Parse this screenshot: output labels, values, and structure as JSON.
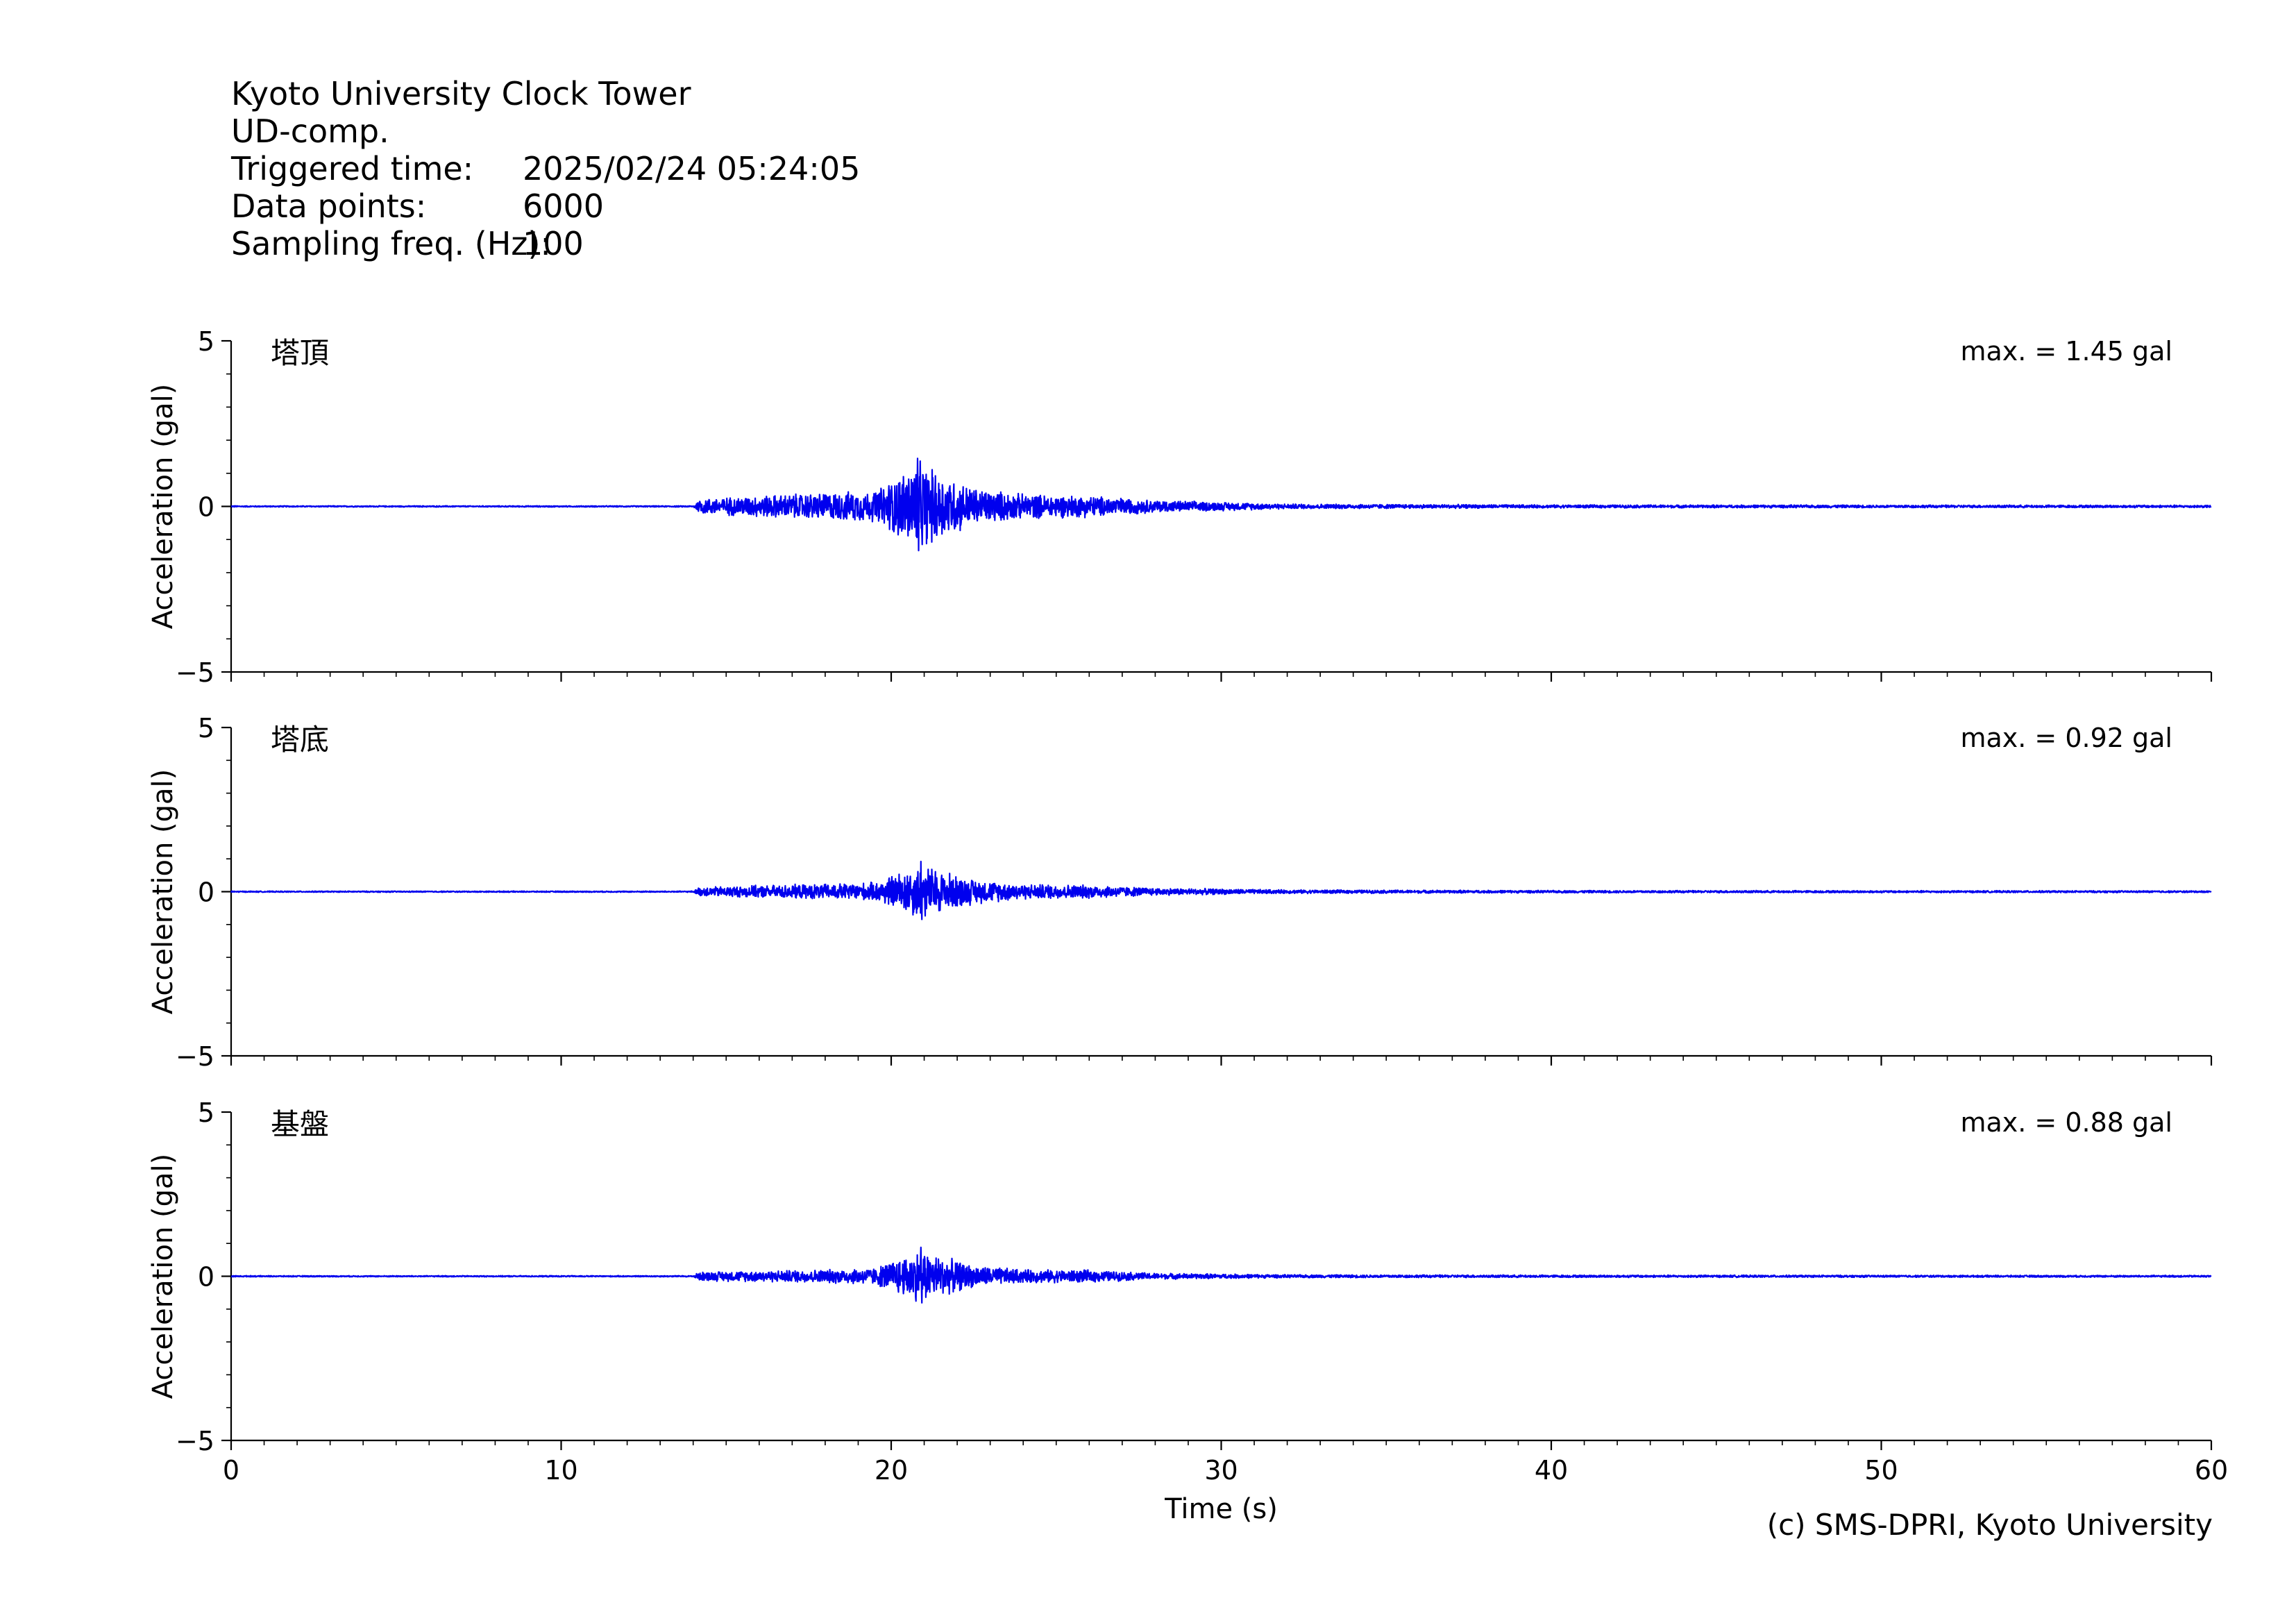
{
  "header": {
    "station": "Kyoto University Clock Tower",
    "component": "UD-comp.",
    "triggered_label": "Triggered time:",
    "triggered_value": "2025/02/24 05:24:05",
    "datapoints_label": "Data points:",
    "datapoints_value": "6000",
    "sampling_label": "Sampling freq. (Hz):",
    "sampling_value": "100"
  },
  "credit": "(c) SMS-DPRI, Kyoto University",
  "colors": {
    "trace": "#0000ee",
    "axis": "#000000"
  },
  "chart_data": [
    {
      "type": "line",
      "panel_label": "塔頂",
      "max_label": "max. = 1.45 gal",
      "peak": 1.45,
      "ylabel": "Acceleration (gal)",
      "xlabel": "",
      "xlim": [
        0,
        60
      ],
      "ylim": [
        -5,
        5
      ],
      "yticks": [
        -5,
        0,
        5
      ],
      "xticks": [
        0,
        10,
        20,
        30,
        40,
        50,
        60
      ],
      "show_xticklabels": false,
      "envelope": [
        {
          "t": 0,
          "a": 0.02
        },
        {
          "t": 14.0,
          "a": 0.02
        },
        {
          "t": 14.2,
          "a": 0.25
        },
        {
          "t": 16.0,
          "a": 0.35
        },
        {
          "t": 18.0,
          "a": 0.45
        },
        {
          "t": 19.5,
          "a": 0.5
        },
        {
          "t": 20.8,
          "a": 1.45
        },
        {
          "t": 21.5,
          "a": 1.1
        },
        {
          "t": 22.5,
          "a": 0.6
        },
        {
          "t": 24.0,
          "a": 0.4
        },
        {
          "t": 26.0,
          "a": 0.35
        },
        {
          "t": 28.0,
          "a": 0.2
        },
        {
          "t": 32.0,
          "a": 0.08
        },
        {
          "t": 40.0,
          "a": 0.05
        },
        {
          "t": 60.0,
          "a": 0.04
        }
      ]
    },
    {
      "type": "line",
      "panel_label": "塔底",
      "max_label": "max. = 0.92 gal",
      "peak": 0.92,
      "ylabel": "Acceleration (gal)",
      "xlabel": "",
      "xlim": [
        0,
        60
      ],
      "ylim": [
        -5,
        5
      ],
      "yticks": [
        -5,
        0,
        5
      ],
      "xticks": [
        0,
        10,
        20,
        30,
        40,
        50,
        60
      ],
      "show_xticklabels": false,
      "envelope": [
        {
          "t": 0,
          "a": 0.02
        },
        {
          "t": 14.0,
          "a": 0.02
        },
        {
          "t": 14.2,
          "a": 0.15
        },
        {
          "t": 16.0,
          "a": 0.2
        },
        {
          "t": 18.0,
          "a": 0.25
        },
        {
          "t": 19.5,
          "a": 0.3
        },
        {
          "t": 20.9,
          "a": 0.92
        },
        {
          "t": 21.5,
          "a": 0.7
        },
        {
          "t": 22.5,
          "a": 0.4
        },
        {
          "t": 24.0,
          "a": 0.25
        },
        {
          "t": 26.0,
          "a": 0.22
        },
        {
          "t": 28.0,
          "a": 0.12
        },
        {
          "t": 32.0,
          "a": 0.06
        },
        {
          "t": 40.0,
          "a": 0.04
        },
        {
          "t": 60.0,
          "a": 0.03
        }
      ]
    },
    {
      "type": "line",
      "panel_label": "基盤",
      "max_label": "max. = 0.88 gal",
      "peak": 0.88,
      "ylabel": "Acceleration (gal)",
      "xlabel": "Time (s)",
      "xlim": [
        0,
        60
      ],
      "ylim": [
        -5,
        5
      ],
      "yticks": [
        -5,
        0,
        5
      ],
      "xticks": [
        0,
        10,
        20,
        30,
        40,
        50,
        60
      ],
      "show_xticklabels": true,
      "envelope": [
        {
          "t": 0,
          "a": 0.02
        },
        {
          "t": 14.0,
          "a": 0.02
        },
        {
          "t": 14.2,
          "a": 0.15
        },
        {
          "t": 16.0,
          "a": 0.18
        },
        {
          "t": 18.0,
          "a": 0.22
        },
        {
          "t": 19.5,
          "a": 0.28
        },
        {
          "t": 20.9,
          "a": 0.88
        },
        {
          "t": 21.5,
          "a": 0.65
        },
        {
          "t": 22.5,
          "a": 0.35
        },
        {
          "t": 24.0,
          "a": 0.22
        },
        {
          "t": 26.0,
          "a": 0.2
        },
        {
          "t": 28.0,
          "a": 0.1
        },
        {
          "t": 32.0,
          "a": 0.05
        },
        {
          "t": 40.0,
          "a": 0.04
        },
        {
          "t": 60.0,
          "a": 0.03
        }
      ]
    }
  ]
}
